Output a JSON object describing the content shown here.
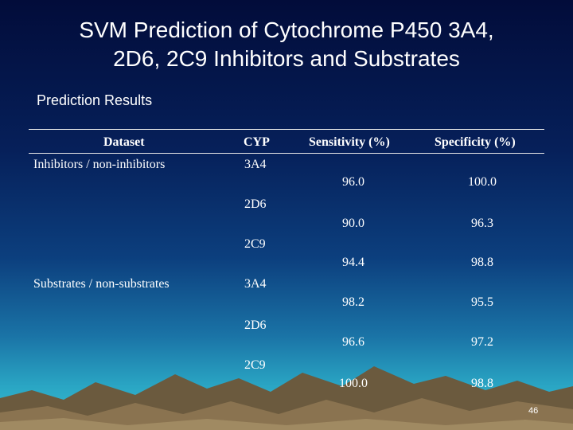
{
  "slide": {
    "title_line1": "SVM Prediction of Cytochrome P450 3A4,",
    "title_line2": "2D6, 2C9 Inhibitors and Substrates",
    "subtitle": "Prediction Results",
    "page_number": "46"
  },
  "table": {
    "headers": {
      "dataset": "Dataset",
      "cyp": "CYP",
      "sensitivity": "Sensitivity (%)",
      "specificity": "Specificity (%)"
    },
    "groups": [
      {
        "label": "Inhibitors / non-inhibitors"
      },
      {
        "label": "Substrates / non-substrates"
      }
    ],
    "rows": [
      {
        "cyp": "3A4",
        "sensitivity": "96.0",
        "specificity": "100.0"
      },
      {
        "cyp": "2D6",
        "sensitivity": "90.0",
        "specificity": "96.3"
      },
      {
        "cyp": "2C9",
        "sensitivity": "94.4",
        "specificity": "98.8"
      },
      {
        "cyp": "3A4",
        "sensitivity": "98.2",
        "specificity": "95.5"
      },
      {
        "cyp": "2D6",
        "sensitivity": "96.6",
        "specificity": "97.2"
      },
      {
        "cyp": "2C9",
        "sensitivity": "100.0",
        "specificity": "98.8"
      }
    ]
  }
}
